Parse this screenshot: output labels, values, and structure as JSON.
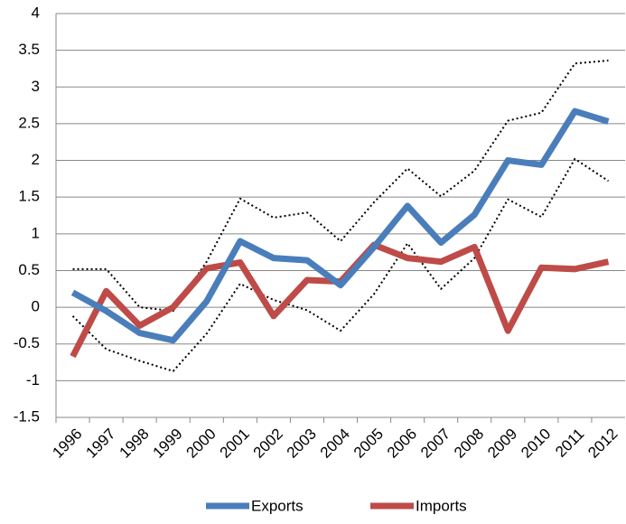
{
  "chart_data": {
    "type": "line",
    "categories": [
      "1996",
      "1997",
      "1998",
      "1999",
      "2000",
      "2001",
      "2002",
      "2003",
      "2004",
      "2005",
      "2006",
      "2007",
      "2008",
      "2009",
      "2010",
      "2011",
      "2012"
    ],
    "series": [
      {
        "name": "Exports",
        "color": "#4a7ebb",
        "values": [
          0.2,
          -0.05,
          -0.35,
          -0.45,
          0.08,
          0.9,
          0.67,
          0.64,
          0.3,
          0.82,
          1.38,
          0.88,
          1.26,
          2.0,
          1.94,
          2.67,
          2.53
        ]
      },
      {
        "name": "Imports",
        "color": "#be4b48",
        "values": [
          -0.67,
          0.22,
          -0.25,
          0.0,
          0.53,
          0.61,
          -0.12,
          0.37,
          0.35,
          0.85,
          0.67,
          0.62,
          0.82,
          -0.32,
          0.54,
          0.52,
          0.62
        ]
      },
      {
        "color": "#000000",
        "dash": "dotted",
        "values": [
          0.52,
          0.52,
          0.0,
          -0.05,
          0.62,
          1.48,
          1.22,
          1.29,
          0.9,
          1.43,
          1.89,
          1.51,
          1.86,
          2.54,
          2.65,
          3.32,
          3.36
        ]
      },
      {
        "color": "#000000",
        "dash": "dotted",
        "values": [
          -0.12,
          -0.57,
          -0.73,
          -0.87,
          -0.36,
          0.32,
          0.1,
          -0.04,
          -0.32,
          0.18,
          0.87,
          0.25,
          0.67,
          1.47,
          1.23,
          2.02,
          1.72
        ]
      }
    ],
    "ylim": [
      -1.5,
      4
    ],
    "yticks": [
      -1.5,
      -1,
      -0.5,
      0,
      0.5,
      1,
      1.5,
      2,
      2.5,
      3,
      3.5,
      4
    ],
    "grid": true,
    "legend": "bottom"
  }
}
